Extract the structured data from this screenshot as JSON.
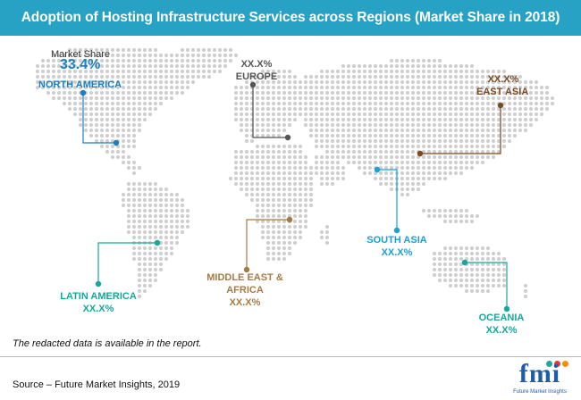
{
  "title": "Adoption of Hosting Infrastructure Services across Regions (Market Share in 2018)",
  "regions": {
    "north_america": {
      "caption": "Market Share",
      "value": "33.4%",
      "name": "NORTH AMERICA",
      "color": "#1b7fc0"
    },
    "europe": {
      "value": "XX.X%",
      "name": "EUROPE",
      "color": "#555555"
    },
    "east_asia": {
      "value": "XX.X%",
      "name": "EAST ASIA",
      "color": "#7a4a22"
    },
    "south_asia": {
      "name": "SOUTH ASIA",
      "value": "XX.X%",
      "color": "#1aa0d8"
    },
    "latin_america": {
      "name": "LATIN AMERICA",
      "value": "XX.X%",
      "color": "#16a79a"
    },
    "middle_east_africa": {
      "name_line1": "MIDDLE EAST &",
      "name_line2": "AFRICA",
      "value": "XX.X%",
      "color": "#a57b45"
    },
    "oceania": {
      "name": "OCEANIA",
      "value": "XX.X%",
      "color": "#16a79a"
    }
  },
  "note": "The redacted data is available in the report.",
  "source": "Source – Future Market Insights, 2019",
  "logo": {
    "mark": "fmi",
    "tagline": "Future Market Insights"
  },
  "colors": {
    "title_bar": "#27a2c4",
    "map_dots": "#cfcfcf",
    "logo": "#1d5ea8"
  }
}
